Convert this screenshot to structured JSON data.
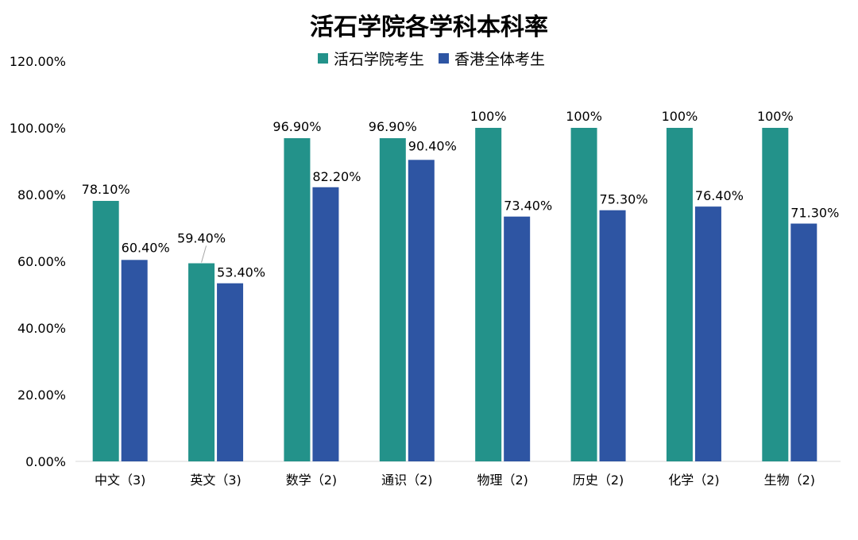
{
  "chart_data": {
    "type": "bar",
    "title": "活石学院各学科本科率",
    "categories": [
      "中文（3)",
      "英文（3)",
      "数学（2)",
      "通识（2)",
      "物理（2)",
      "历史（2)",
      "化学（2)",
      "生物（2)"
    ],
    "series": [
      {
        "name": "活石学院考生",
        "color": "#23928a",
        "values": [
          78.1,
          59.4,
          96.9,
          96.9,
          100,
          100,
          100,
          100
        ],
        "labels": [
          "78.10%",
          "59.40%",
          "96.90%",
          "96.90%",
          "100%",
          "100%",
          "100%",
          "100%"
        ]
      },
      {
        "name": "香港全体考生",
        "color": "#2e55a3",
        "values": [
          60.4,
          53.4,
          82.2,
          90.4,
          73.4,
          75.3,
          76.4,
          71.3
        ],
        "labels": [
          "60.40%",
          "53.40%",
          "82.20%",
          "90.40%",
          "73.40%",
          "75.30%",
          "76.40%",
          "71.30%"
        ]
      }
    ],
    "ylim": [
      0,
      120
    ],
    "yticks": [
      "0.00%",
      "20.00%",
      "40.00%",
      "60.00%",
      "80.00%",
      "100.00%",
      "120.00%"
    ],
    "ytick_values": [
      0,
      20,
      40,
      60,
      80,
      100,
      120
    ],
    "grid": false,
    "legend_position": "top-center"
  }
}
